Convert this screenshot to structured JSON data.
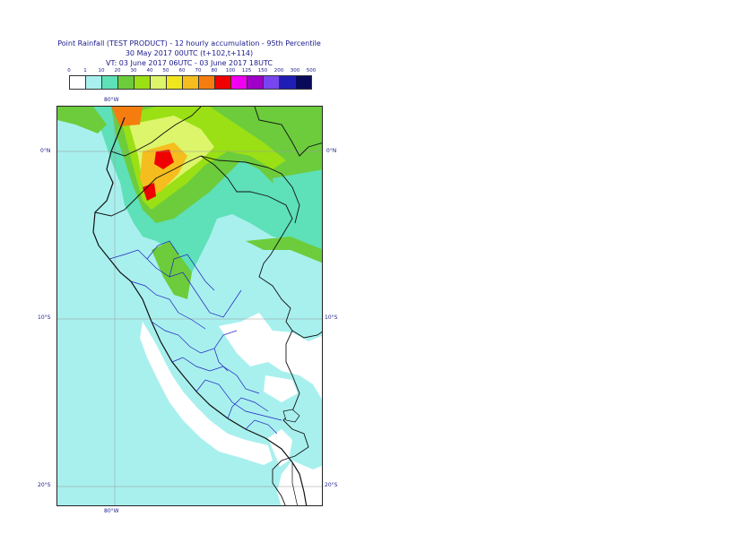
{
  "title": {
    "line1": "Point Rainfall (TEST PRODUCT) - 12 hourly accumulation - 95th Percentile",
    "line2": "30 May 2017 00UTC (t+102,t+114)",
    "line3": "VT: 03 June 2017 06UTC - 03 June 2017 18UTC"
  },
  "legend": {
    "ticks": [
      "0",
      "1",
      "10",
      "20",
      "30",
      "40",
      "50",
      "60",
      "70",
      "80",
      "100",
      "125",
      "150",
      "200",
      "300",
      "500"
    ],
    "colors": [
      "#ffffff",
      "#a8f0ee",
      "#5ee0b8",
      "#6ccc3c",
      "#9ae014",
      "#ddf56a",
      "#f0e61e",
      "#f5be1e",
      "#f57d0f",
      "#f00000",
      "#f000f0",
      "#a000c8",
      "#7846f0",
      "#1e1eb4",
      "#0a0a5a"
    ]
  },
  "map": {
    "labels": {
      "top_lon": "80°W",
      "bottom_lon": "80°W",
      "lat_0_left": "0°N",
      "lat_0_right": "0°N",
      "lat_10_left": "10°S",
      "lat_10_right": "10°S",
      "lat_20_left": "20°S",
      "lat_20_right": "20°S"
    }
  }
}
